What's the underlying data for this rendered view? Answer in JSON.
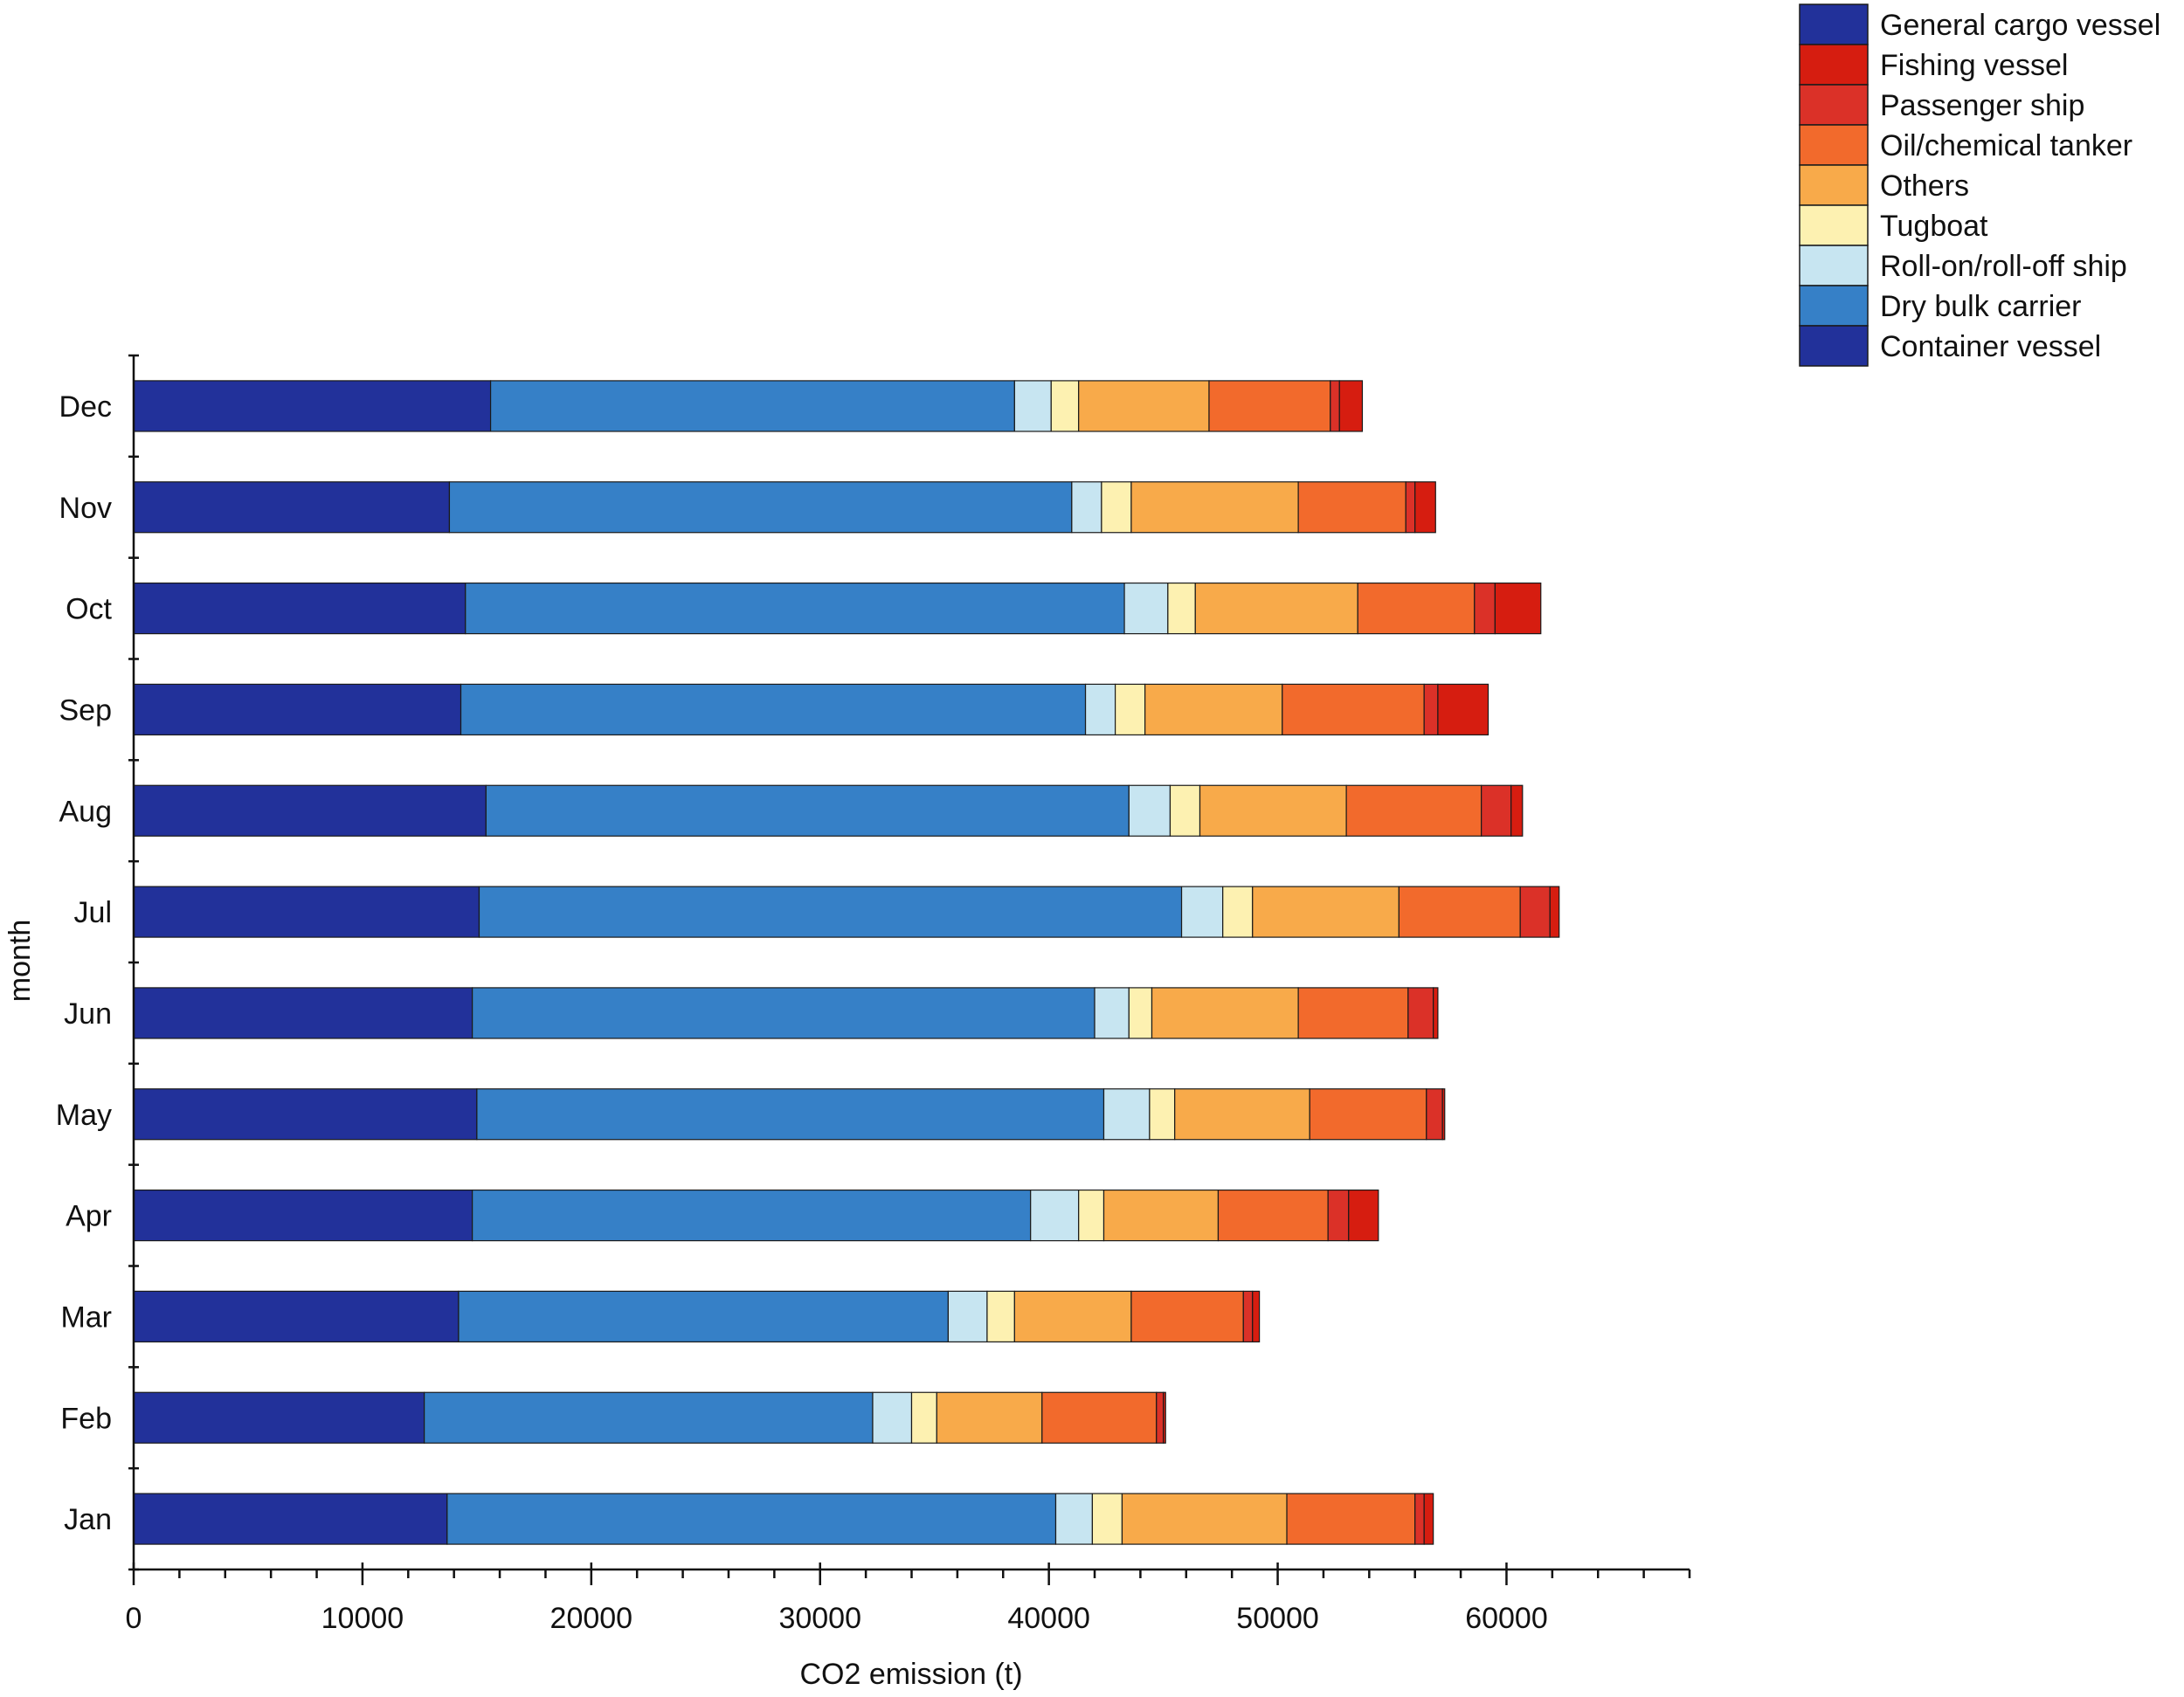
{
  "chart_data": {
    "type": "bar",
    "orientation": "horizontal",
    "stacked": true,
    "title": "",
    "xlabel": "CO2  emission (t)",
    "ylabel": "month",
    "xlim": [
      0,
      68000
    ],
    "xticks": [
      0,
      10000,
      20000,
      30000,
      40000,
      50000,
      60000
    ],
    "xtick_labels": [
      "0",
      "10000",
      "20000",
      "30000",
      "40000",
      "50000",
      "60000"
    ],
    "grid": false,
    "legend_position": "top-right",
    "categories": [
      "Jan",
      "Feb",
      "Mar",
      "Apr",
      "May",
      "Jun",
      "Jul",
      "Aug",
      "Sep",
      "Oct",
      "Nov",
      "Dec"
    ],
    "series": [
      {
        "name": "Container vessel",
        "color": "#22319a",
        "values": [
          13700,
          12700,
          14200,
          14800,
          15000,
          14800,
          15100,
          15400,
          14300,
          14500,
          13800,
          15600
        ]
      },
      {
        "name": "Dry bulk carrier",
        "color": "#3680c7",
        "values": [
          26600,
          19600,
          21400,
          24400,
          27400,
          27200,
          30700,
          28100,
          27300,
          28800,
          27200,
          22900
        ]
      },
      {
        "name": "Roll-on/roll-off ship",
        "color": "#c7e5f1",
        "values": [
          1600,
          1700,
          1700,
          2100,
          2000,
          1500,
          1800,
          1800,
          1300,
          1900,
          1300,
          1600
        ]
      },
      {
        "name": "Tugboat",
        "color": "#fdf1b1",
        "values": [
          1300,
          1100,
          1200,
          1100,
          1100,
          1000,
          1300,
          1300,
          1300,
          1200,
          1300,
          1200
        ]
      },
      {
        "name": "Others",
        "color": "#f8aa4a",
        "values": [
          7200,
          4600,
          5100,
          5000,
          5900,
          6400,
          6400,
          6400,
          6000,
          7100,
          7300,
          5700
        ]
      },
      {
        "name": "Oil/chemical tanker",
        "color": "#f26a2c",
        "values": [
          5600,
          5000,
          4900,
          4800,
          5100,
          4800,
          5300,
          5900,
          6200,
          5100,
          4700,
          5300
        ]
      },
      {
        "name": "Passenger ship",
        "color": "#db3128",
        "values": [
          400,
          300,
          400,
          900,
          700,
          1100,
          1300,
          1300,
          600,
          900,
          400,
          400
        ]
      },
      {
        "name": "Fishing vessel",
        "color": "#d61d10",
        "values": [
          400,
          100,
          300,
          1300,
          100,
          200,
          400,
          500,
          2200,
          2000,
          900,
          1000
        ]
      },
      {
        "name": "General cargo vessel",
        "color": "#22319a",
        "values": [
          0,
          0,
          0,
          0,
          0,
          0,
          0,
          0,
          0,
          0,
          0,
          0
        ]
      }
    ],
    "legend_order": [
      "General cargo vessel",
      "Fishing vessel",
      "Passenger ship",
      "Oil/chemical tanker",
      "Others",
      "Tugboat",
      "Roll-on/roll-off ship",
      "Dry bulk carrier",
      "Container vessel"
    ]
  }
}
